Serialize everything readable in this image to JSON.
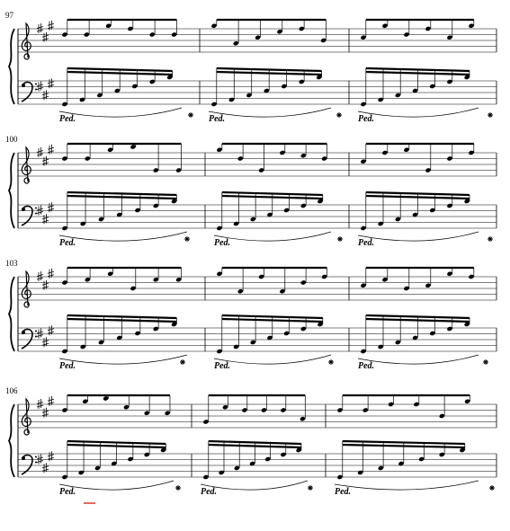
{
  "systems": [
    {
      "measure_number": "97"
    },
    {
      "measure_number": "100"
    },
    {
      "measure_number": "103"
    },
    {
      "measure_number": "106"
    }
  ],
  "pedal_mark": "Ped."
}
